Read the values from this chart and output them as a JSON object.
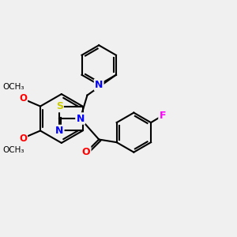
{
  "background_color": "#f0f0f0",
  "bond_color": "#000000",
  "atom_colors": {
    "N": "#0000ff",
    "S": "#cccc00",
    "O": "#ff0000",
    "F": "#ff00ff",
    "C": "#000000"
  },
  "figsize": [
    3.0,
    3.0
  ],
  "dpi": 100
}
